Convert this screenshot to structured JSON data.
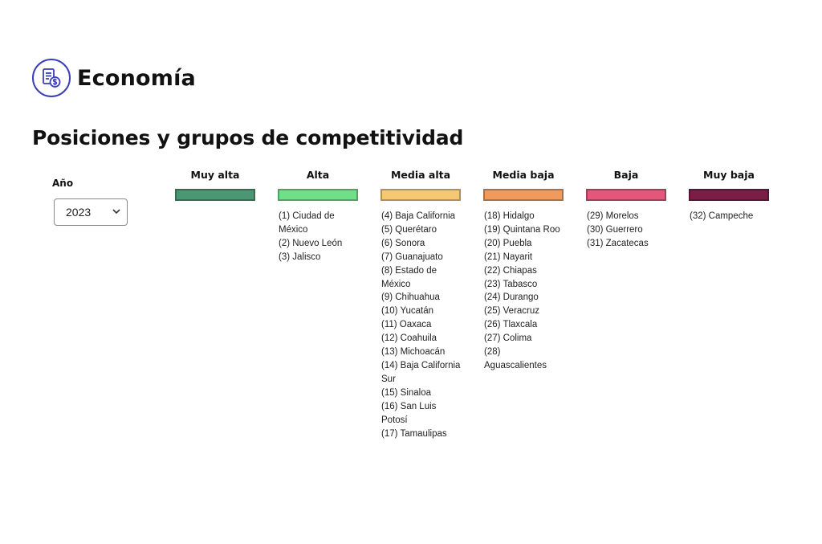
{
  "header": {
    "title": "Economía",
    "icon": "economy-document-dollar-icon"
  },
  "section": {
    "title": "Posiciones y grupos de competitividad"
  },
  "filters": {
    "year_label": "Año",
    "year_value": "2023"
  },
  "groups": [
    {
      "title": "Muy alta",
      "color": "#4a9873",
      "items": []
    },
    {
      "title": "Alta",
      "color": "#6fe08a",
      "items": [
        "(1) Ciudad de México",
        "(2) Nuevo León",
        "(3) Jalisco"
      ]
    },
    {
      "title": "Media alta",
      "color": "#f7c872",
      "items": [
        "(4) Baja California",
        "(5) Querétaro",
        "(6) Sonora",
        "(7) Guanajuato",
        "(8) Estado de México",
        "(9) Chihuahua",
        "(10) Yucatán",
        "(11) Oaxaca",
        "(12) Coahuila",
        "(13) Michoacán",
        "(14) Baja California Sur",
        "(15) Sinaloa",
        "(16) San Luis Potosí",
        "(17) Tamaulipas"
      ]
    },
    {
      "title": "Media baja",
      "color": "#f19a5b",
      "items": [
        "(18) Hidalgo",
        "(19) Quintana Roo",
        "(20) Puebla",
        "(21) Nayarit",
        "(22) Chiapas",
        "(23) Tabasco",
        "(24) Durango",
        "(25) Veracruz",
        "(26) Tlaxcala",
        "(27) Colima",
        "(28) Aguascalientes"
      ]
    },
    {
      "title": "Baja",
      "color": "#e4577a",
      "items": [
        "(29) Morelos",
        "(30) Guerrero",
        "(31) Zacatecas"
      ]
    },
    {
      "title": "Muy baja",
      "color": "#7b1d46",
      "items": [
        "(32) Campeche"
      ]
    }
  ]
}
